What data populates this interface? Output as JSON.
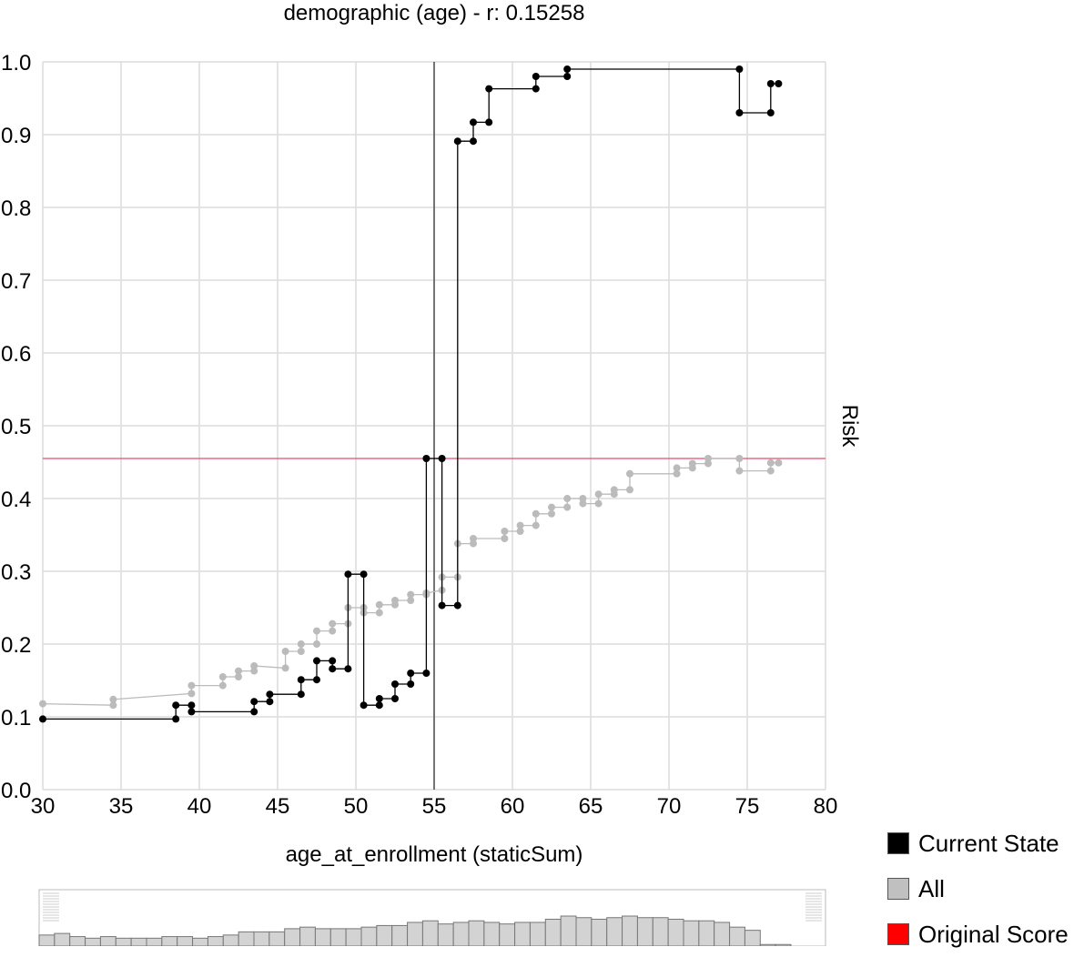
{
  "chart_data": {
    "type": "line",
    "title": "demographic (age) - r: 0.15258",
    "xlabel": "age_at_enrollment (staticSum)",
    "ylabel": "Risk",
    "xlim": [
      30,
      80
    ],
    "ylim": [
      0,
      1
    ],
    "x_ticks": [
      "30",
      "35",
      "40",
      "45",
      "50",
      "55",
      "60",
      "65",
      "70",
      "75",
      "80"
    ],
    "y_ticks": [
      "0.0",
      "0.1",
      "0.2",
      "0.3",
      "0.4",
      "0.5",
      "0.6",
      "0.7",
      "0.8",
      "0.9",
      "1.0"
    ],
    "grid": true,
    "current_value_x": 55,
    "original_score": 0.455,
    "series": [
      {
        "name": "All",
        "color": "#bbbbbb",
        "points": [
          [
            30,
            0.118
          ],
          [
            34.5,
            0.116
          ],
          [
            34.5,
            0.124
          ],
          [
            39.5,
            0.132
          ],
          [
            39.5,
            0.143
          ],
          [
            41.5,
            0.143
          ],
          [
            41.5,
            0.155
          ],
          [
            42.5,
            0.155
          ],
          [
            42.5,
            0.163
          ],
          [
            43.5,
            0.163
          ],
          [
            43.5,
            0.17
          ],
          [
            45.5,
            0.167
          ],
          [
            45.5,
            0.19
          ],
          [
            46.5,
            0.19
          ],
          [
            46.5,
            0.2
          ],
          [
            47.5,
            0.2
          ],
          [
            47.5,
            0.218
          ],
          [
            48.5,
            0.218
          ],
          [
            48.5,
            0.228
          ],
          [
            49.5,
            0.228
          ],
          [
            49.5,
            0.25
          ],
          [
            50.5,
            0.25
          ],
          [
            50.5,
            0.243
          ],
          [
            51.5,
            0.243
          ],
          [
            51.5,
            0.254
          ],
          [
            52.5,
            0.254
          ],
          [
            52.5,
            0.26
          ],
          [
            53.5,
            0.26
          ],
          [
            53.5,
            0.268
          ],
          [
            54.5,
            0.268
          ],
          [
            54.5,
            0.27
          ],
          [
            55.5,
            0.274
          ],
          [
            55.5,
            0.292
          ],
          [
            56.5,
            0.292
          ],
          [
            56.5,
            0.338
          ],
          [
            57.5,
            0.338
          ],
          [
            57.5,
            0.345
          ],
          [
            59.5,
            0.345
          ],
          [
            59.5,
            0.355
          ],
          [
            60.5,
            0.355
          ],
          [
            60.5,
            0.363
          ],
          [
            61.5,
            0.363
          ],
          [
            61.5,
            0.379
          ],
          [
            62.5,
            0.379
          ],
          [
            62.5,
            0.388
          ],
          [
            63.5,
            0.388
          ],
          [
            63.5,
            0.4
          ],
          [
            64.5,
            0.4
          ],
          [
            64.5,
            0.393
          ],
          [
            65.5,
            0.393
          ],
          [
            65.5,
            0.406
          ],
          [
            66.5,
            0.406
          ],
          [
            66.5,
            0.412
          ],
          [
            67.5,
            0.412
          ],
          [
            67.5,
            0.434
          ],
          [
            70.5,
            0.434
          ],
          [
            70.5,
            0.442
          ],
          [
            71.5,
            0.442
          ],
          [
            71.5,
            0.448
          ],
          [
            72.5,
            0.448
          ],
          [
            72.5,
            0.455
          ],
          [
            74.5,
            0.455
          ],
          [
            74.5,
            0.438
          ],
          [
            76.5,
            0.438
          ],
          [
            76.5,
            0.449
          ],
          [
            77,
            0.449
          ]
        ]
      },
      {
        "name": "Current State",
        "color": "#000000",
        "points": [
          [
            30,
            0.097
          ],
          [
            38.5,
            0.097
          ],
          [
            38.5,
            0.116
          ],
          [
            39.5,
            0.116
          ],
          [
            39.5,
            0.107
          ],
          [
            43.5,
            0.107
          ],
          [
            43.5,
            0.121
          ],
          [
            44.5,
            0.121
          ],
          [
            44.5,
            0.131
          ],
          [
            46.5,
            0.131
          ],
          [
            46.5,
            0.151
          ],
          [
            47.5,
            0.151
          ],
          [
            47.5,
            0.177
          ],
          [
            48.5,
            0.177
          ],
          [
            48.5,
            0.166
          ],
          [
            49.5,
            0.166
          ],
          [
            49.5,
            0.296
          ],
          [
            50.5,
            0.296
          ],
          [
            50.5,
            0.116
          ],
          [
            51.5,
            0.116
          ],
          [
            51.5,
            0.125
          ],
          [
            52.5,
            0.125
          ],
          [
            52.5,
            0.145
          ],
          [
            53.5,
            0.145
          ],
          [
            53.5,
            0.16
          ],
          [
            54.5,
            0.16
          ],
          [
            54.5,
            0.455
          ],
          [
            55.5,
            0.455
          ],
          [
            55.5,
            0.253
          ],
          [
            56.5,
            0.253
          ],
          [
            56.5,
            0.891
          ],
          [
            57.5,
            0.891
          ],
          [
            57.5,
            0.917
          ],
          [
            58.5,
            0.917
          ],
          [
            58.5,
            0.963
          ],
          [
            61.5,
            0.963
          ],
          [
            61.5,
            0.98
          ],
          [
            63.5,
            0.98
          ],
          [
            63.5,
            0.99
          ],
          [
            74.5,
            0.99
          ],
          [
            74.5,
            0.93
          ],
          [
            76.5,
            0.93
          ],
          [
            76.5,
            0.97
          ],
          [
            77,
            0.97
          ]
        ]
      }
    ],
    "histogram": {
      "counts": [
        7,
        8,
        6,
        5,
        6,
        5,
        5,
        5,
        6,
        6,
        5,
        6,
        7,
        9,
        9,
        9,
        11,
        12,
        11,
        11,
        11,
        12,
        13,
        13,
        15,
        16,
        14,
        15,
        16,
        15,
        14,
        15,
        15,
        17,
        19,
        18,
        17,
        18,
        19,
        18,
        18,
        17,
        16,
        16,
        15,
        12,
        10,
        1,
        1
      ]
    }
  },
  "legend": [
    {
      "label": "Current State",
      "color": "#000000"
    },
    {
      "label": "All",
      "color": "#c0c0c0"
    },
    {
      "label": "Original Score",
      "color": "#ff0000"
    }
  ]
}
